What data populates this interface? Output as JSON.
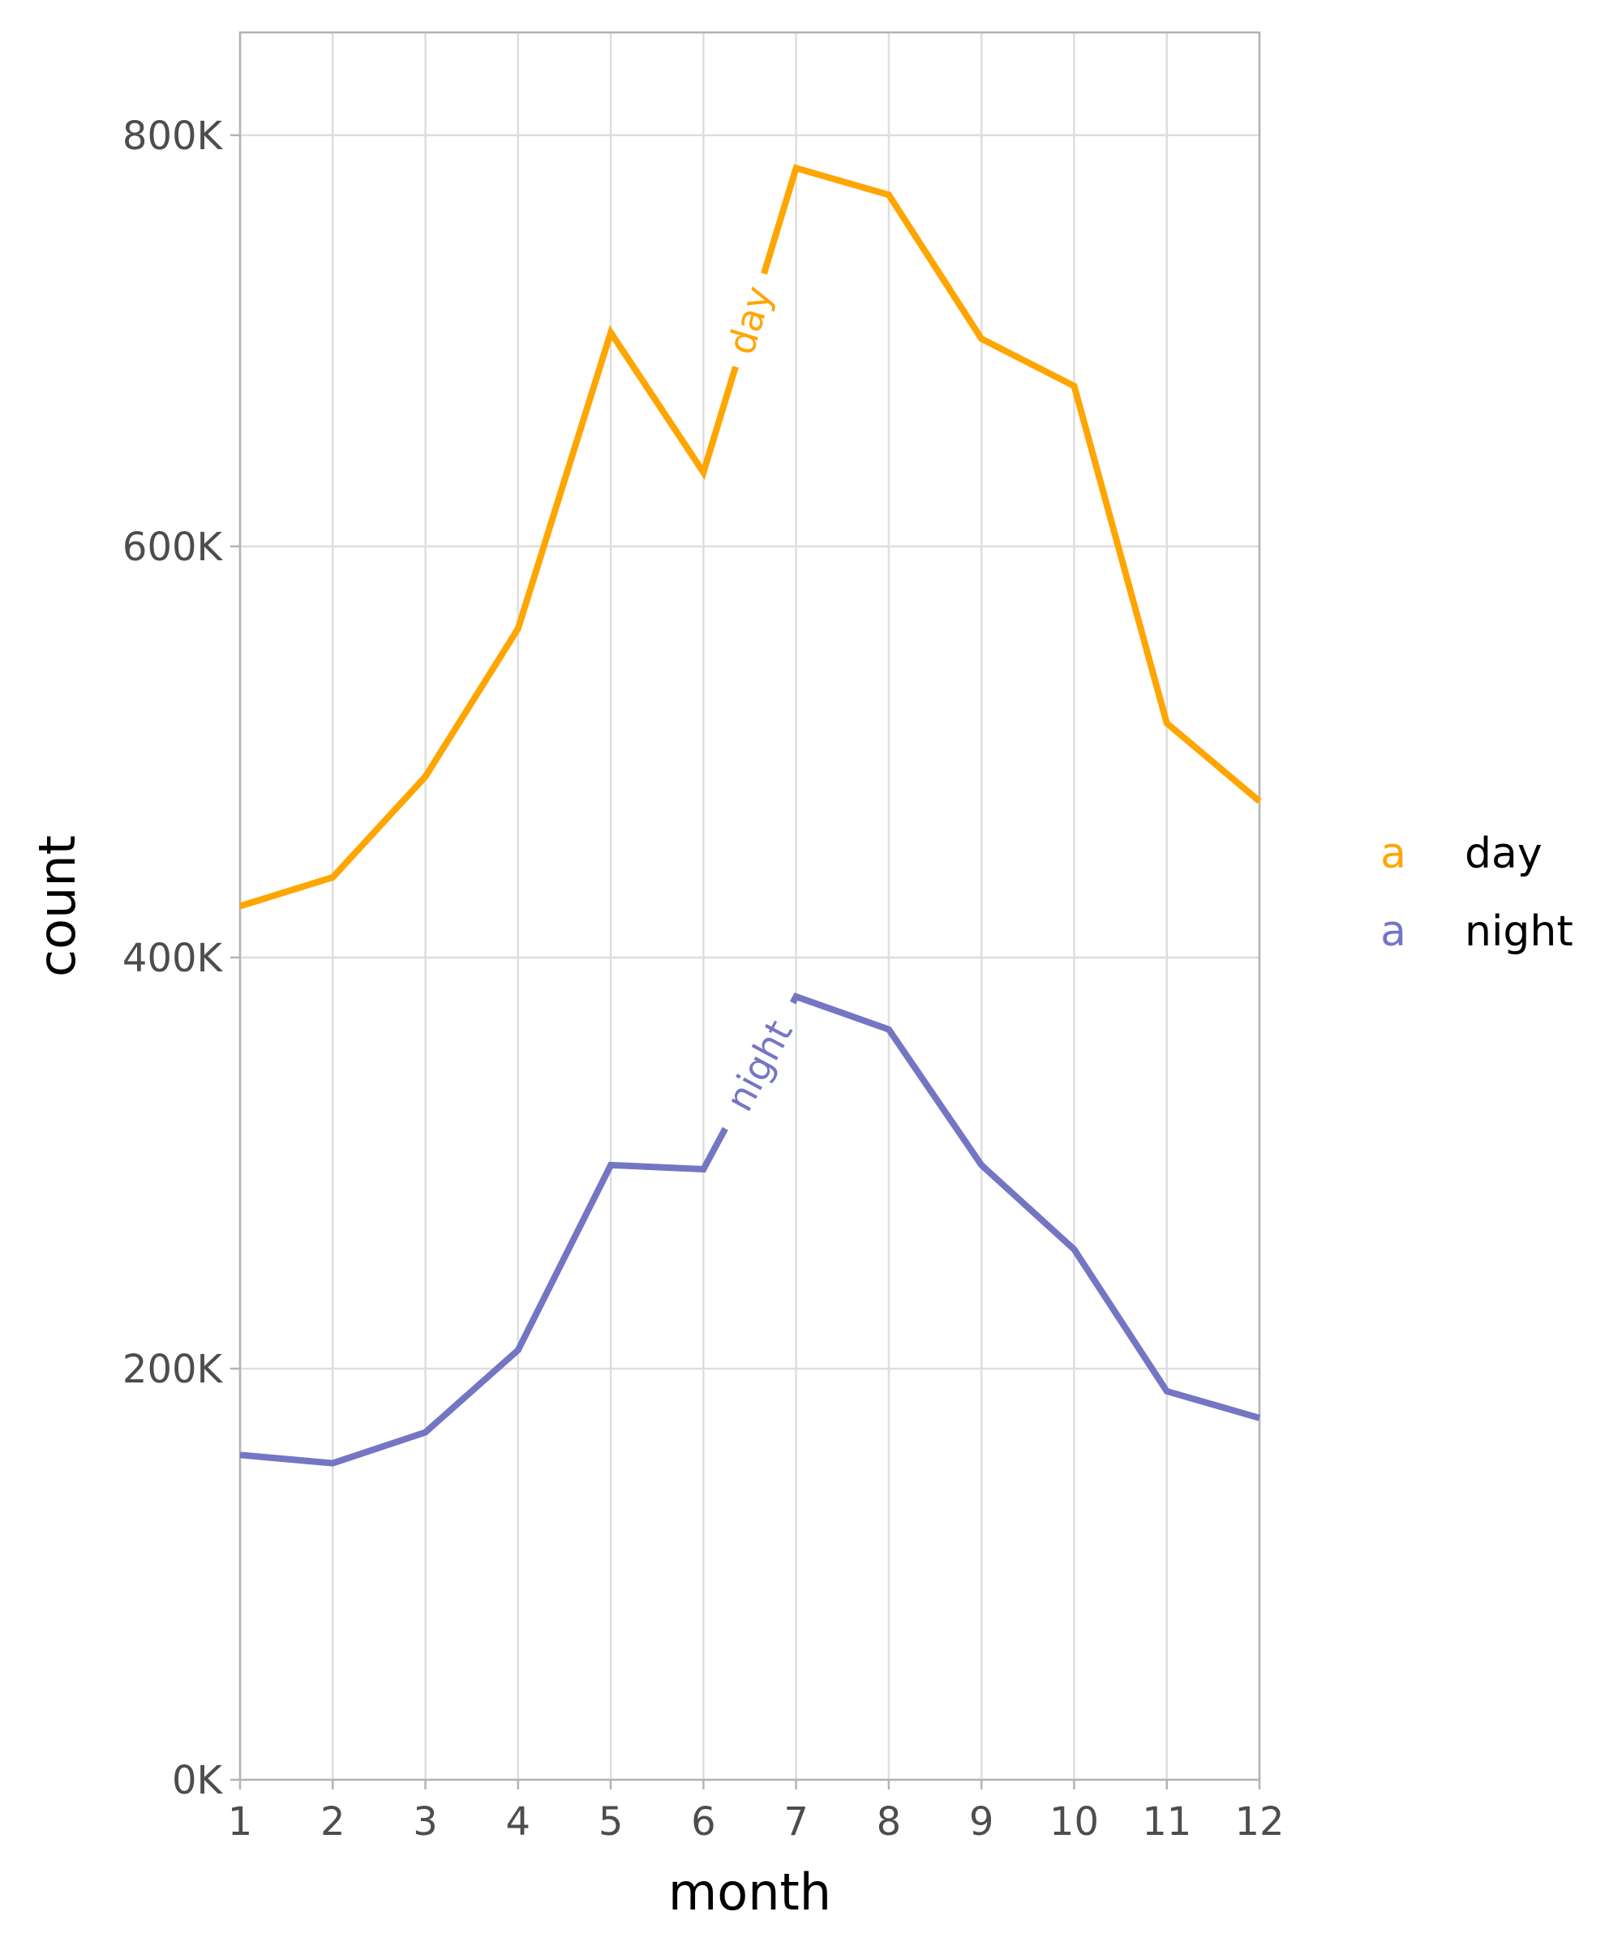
{
  "chart_data": {
    "type": "line",
    "xlabel": "month",
    "ylabel": "count",
    "x": [
      1,
      2,
      3,
      4,
      5,
      6,
      7,
      8,
      9,
      10,
      11,
      12
    ],
    "x_ticks": [
      "1",
      "2",
      "3",
      "4",
      "5",
      "6",
      "7",
      "8",
      "9",
      "10",
      "11",
      "12"
    ],
    "xlim": [
      1,
      12
    ],
    "y_ticks": [
      {
        "value": 0,
        "label": "0K"
      },
      {
        "value": 200000,
        "label": "200K"
      },
      {
        "value": 400000,
        "label": "400K"
      },
      {
        "value": 600000,
        "label": "600K"
      },
      {
        "value": 800000,
        "label": "800K"
      }
    ],
    "ylim": [
      0,
      850000
    ],
    "grid": true,
    "legend_position": "right",
    "series": [
      {
        "name": "day",
        "color": "#FFA500",
        "label_x": 6.5,
        "values": [
          425000,
          439000,
          488000,
          560000,
          704000,
          636000,
          784000,
          771000,
          701000,
          678000,
          514000,
          476000
        ]
      },
      {
        "name": "night",
        "color": "#7476C4",
        "label_x": 6.6,
        "values": [
          158000,
          154000,
          169000,
          209000,
          299000,
          297000,
          381000,
          365000,
          299000,
          258000,
          189000,
          176000
        ]
      }
    ],
    "legend": [
      {
        "key": "a",
        "label": "day",
        "color": "#FFA500"
      },
      {
        "key": "a",
        "label": "night",
        "color": "#7476C4"
      }
    ]
  }
}
